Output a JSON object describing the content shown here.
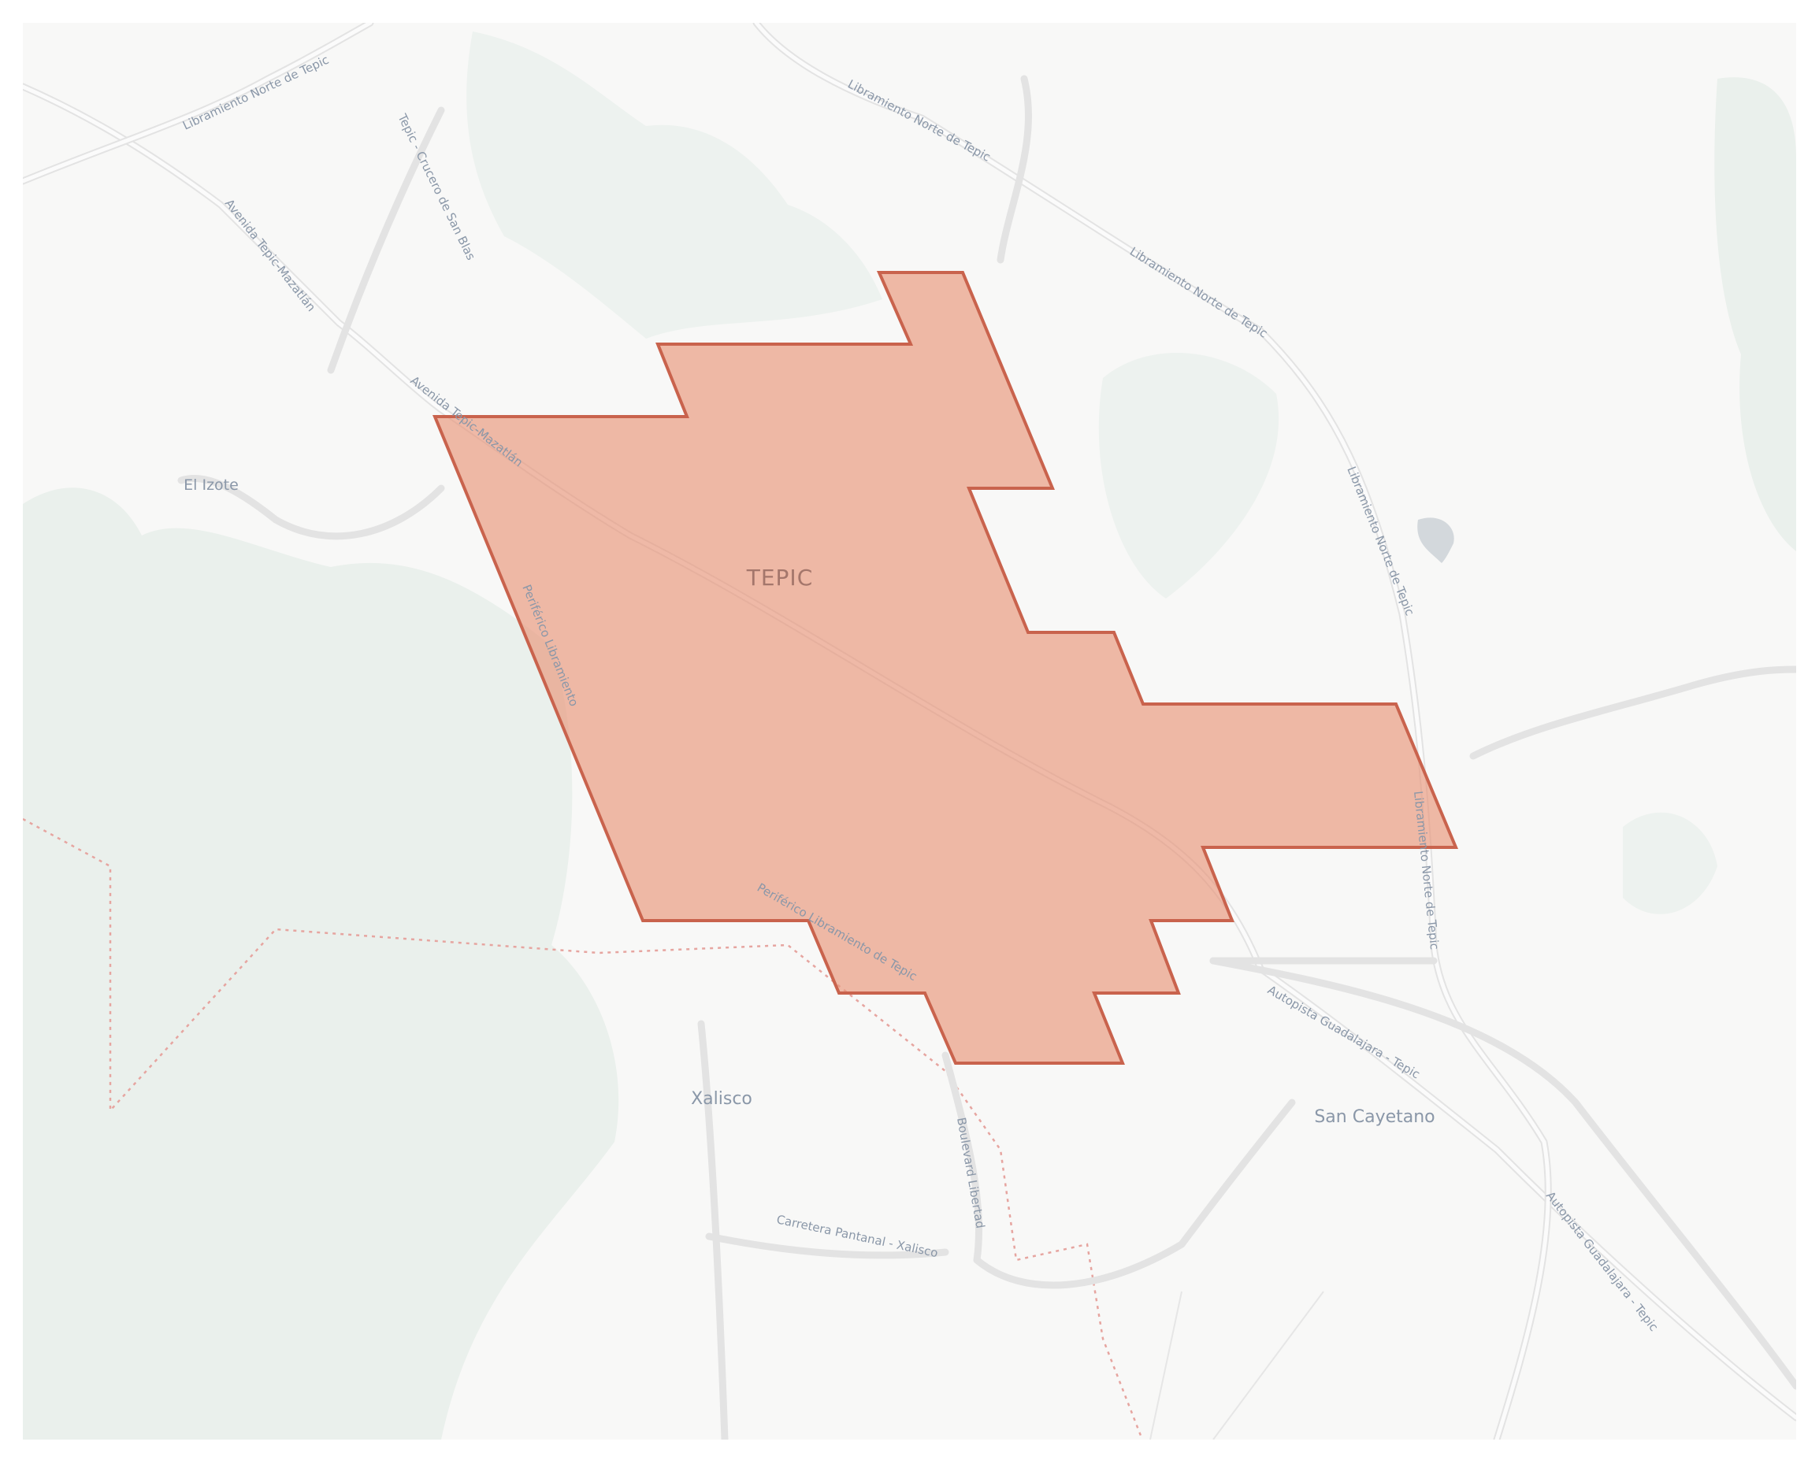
{
  "map": {
    "place_labels": [
      {
        "text": "TEPIC",
        "kind": "city"
      },
      {
        "text": "El Izote",
        "kind": "locality"
      },
      {
        "text": "Xalisco",
        "kind": "town"
      },
      {
        "text": "San Cayetano",
        "kind": "locality"
      }
    ],
    "road_labels": [
      "Libramiento Norte de Tepic",
      "Libramiento Norte de Tepic",
      "Libramiento Norte de Tepic",
      "Libramiento Norte de Tepic",
      "Libramiento Norte de Tepic",
      "Tepic - Crucero de San Blas",
      "Avenida Tepic-Mazatlán",
      "Avenida Tepic-Mazatlán",
      "Periférico Libramiento",
      "Periférico Libramiento de Tepic",
      "Autopista Guadalajara - Tepic",
      "Autopista Guadalajara - Tepic",
      "Boulevard Libertad",
      "Carretera Pantanal - Xalisco"
    ],
    "overlay": {
      "shape": "highlighted region polygon",
      "fill_color": "#e8957a",
      "fill_opacity": 0.65,
      "stroke_color": "#c9634d"
    },
    "colors": {
      "background": "#f8f8f7",
      "vegetation": "#eaf0ec",
      "water": "#d3d8dc",
      "road": "#e3e3e3",
      "label": "#8a97a8"
    }
  }
}
